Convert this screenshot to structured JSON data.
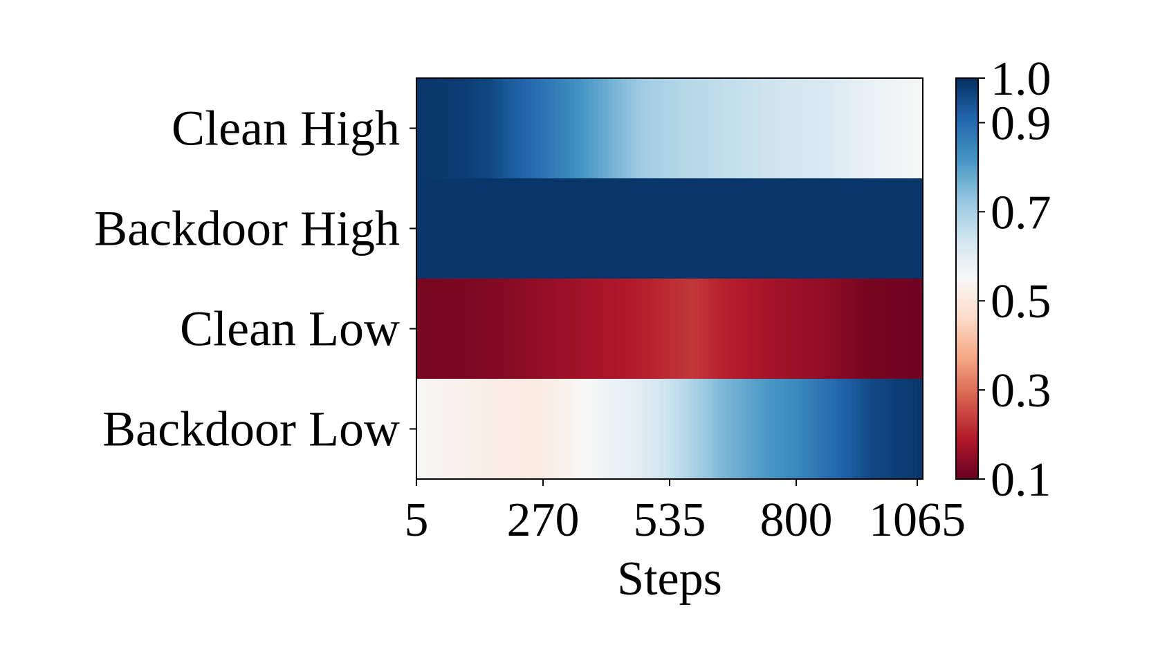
{
  "chart_data": {
    "type": "heatmap",
    "xlabel": "Steps",
    "x_ticks": [
      "5",
      "270",
      "535",
      "800",
      "1065"
    ],
    "xlim": [
      5,
      1065
    ],
    "rows": [
      "Clean High",
      "Backdoor High",
      "Clean Low",
      "Backdoor Low"
    ],
    "colormap": "RdBu",
    "vmin": 0.1,
    "vmax": 1.0,
    "colorbar_ticks": [
      "1.0",
      "0.9",
      "0.7",
      "0.5",
      "0.3",
      "0.1"
    ],
    "colorbar_tick_values": [
      1.0,
      0.9,
      0.7,
      0.5,
      0.3,
      0.1
    ],
    "series": [
      {
        "name": "Clean High",
        "profile": [
          [
            5,
            0.99
          ],
          [
            100,
            0.98
          ],
          [
            160,
            0.96
          ],
          [
            200,
            0.93
          ],
          [
            250,
            0.9
          ],
          [
            300,
            0.86
          ],
          [
            360,
            0.81
          ],
          [
            420,
            0.76
          ],
          [
            480,
            0.71
          ],
          [
            560,
            0.68
          ],
          [
            660,
            0.66
          ],
          [
            760,
            0.64
          ],
          [
            860,
            0.62
          ],
          [
            960,
            0.58
          ],
          [
            1065,
            0.55
          ]
        ]
      },
      {
        "name": "Backdoor High",
        "profile": [
          [
            5,
            0.99
          ],
          [
            1065,
            0.99
          ]
        ]
      },
      {
        "name": "Clean Low",
        "profile": [
          [
            5,
            0.12
          ],
          [
            150,
            0.13
          ],
          [
            300,
            0.16
          ],
          [
            450,
            0.19
          ],
          [
            520,
            0.21
          ],
          [
            580,
            0.23
          ],
          [
            650,
            0.2
          ],
          [
            760,
            0.17
          ],
          [
            860,
            0.15
          ],
          [
            950,
            0.12
          ],
          [
            1065,
            0.11
          ]
        ]
      },
      {
        "name": "Backdoor Low",
        "profile": [
          [
            5,
            0.55
          ],
          [
            150,
            0.52
          ],
          [
            260,
            0.51
          ],
          [
            360,
            0.55
          ],
          [
            470,
            0.6
          ],
          [
            560,
            0.67
          ],
          [
            640,
            0.75
          ],
          [
            720,
            0.8
          ],
          [
            800,
            0.84
          ],
          [
            880,
            0.9
          ],
          [
            960,
            0.96
          ],
          [
            1065,
            0.99
          ]
        ]
      }
    ]
  }
}
